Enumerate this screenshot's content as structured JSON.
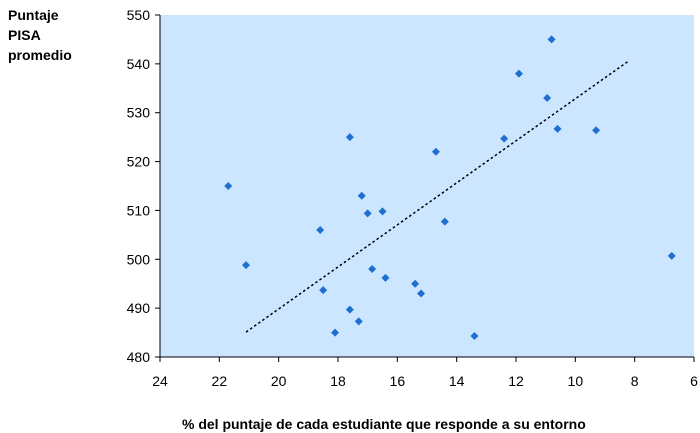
{
  "chart_data": {
    "type": "scatter",
    "ylabel_lines": [
      "Puntaje",
      "PISA",
      "promedio"
    ],
    "xlabel": "% del puntaje de cada estudiante que responde a su entorno",
    "xlim": [
      24,
      6
    ],
    "ylim": [
      480,
      550
    ],
    "xticks": [
      24,
      22,
      20,
      18,
      16,
      14,
      12,
      10,
      8,
      6
    ],
    "yticks": [
      480,
      490,
      500,
      510,
      520,
      530,
      540,
      550
    ],
    "grid": false,
    "colors": {
      "plot_background": "#cce6ff",
      "marker": "#1f6fd1",
      "trend": "#000000"
    },
    "points": [
      {
        "x": 21.7,
        "y": 515
      },
      {
        "x": 21.1,
        "y": 498.8
      },
      {
        "x": 18.6,
        "y": 506
      },
      {
        "x": 18.5,
        "y": 493.7
      },
      {
        "x": 18.1,
        "y": 485
      },
      {
        "x": 17.6,
        "y": 525
      },
      {
        "x": 17.6,
        "y": 489.7
      },
      {
        "x": 17.3,
        "y": 487.3
      },
      {
        "x": 17.2,
        "y": 513
      },
      {
        "x": 17.0,
        "y": 509.4
      },
      {
        "x": 16.85,
        "y": 498
      },
      {
        "x": 16.5,
        "y": 509.8
      },
      {
        "x": 16.4,
        "y": 496.2
      },
      {
        "x": 15.4,
        "y": 495
      },
      {
        "x": 15.2,
        "y": 493
      },
      {
        "x": 14.7,
        "y": 522
      },
      {
        "x": 14.4,
        "y": 507.7
      },
      {
        "x": 13.4,
        "y": 484.3
      },
      {
        "x": 12.4,
        "y": 524.7
      },
      {
        "x": 11.9,
        "y": 538
      },
      {
        "x": 10.95,
        "y": 533
      },
      {
        "x": 10.8,
        "y": 545
      },
      {
        "x": 10.6,
        "y": 526.7
      },
      {
        "x": 9.3,
        "y": 526.4
      },
      {
        "x": 6.75,
        "y": 500.7
      }
    ],
    "trendline": {
      "x": [
        21.1,
        8.2
      ],
      "y": [
        485.1,
        540.6
      ],
      "style": "dotted"
    }
  }
}
